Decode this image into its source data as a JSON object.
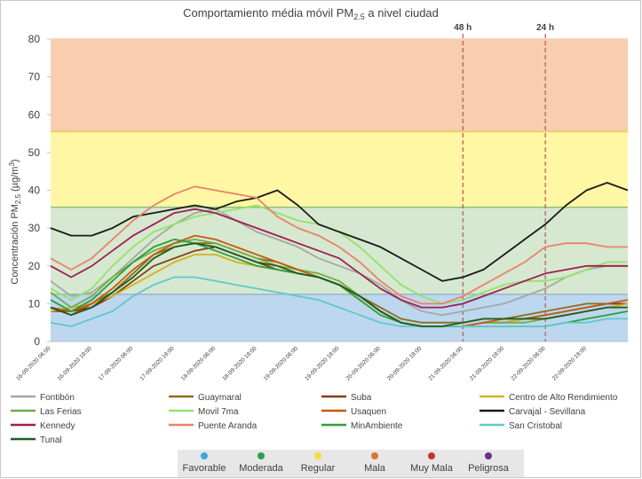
{
  "chart_data": {
    "type": "line",
    "title": [
      "Comportamiento média móvil PM",
      "2.5",
      " a nivel ciudad"
    ],
    "y_label": [
      "Concentración PM",
      "2.5",
      " (µg/m",
      "3",
      ")"
    ],
    "ylim": [
      0,
      80
    ],
    "yticks": [
      0,
      10,
      20,
      30,
      40,
      50,
      60,
      70,
      80
    ],
    "bands": [
      {
        "from": 0,
        "to": 12.5,
        "color": "#bdd7ee",
        "edge": "#9db4cc"
      },
      {
        "from": 12.5,
        "to": 35.5,
        "color": "#d6e8d0",
        "edge": "#8fbf7f"
      },
      {
        "from": 35.5,
        "to": 55.5,
        "color": "#fff7a3",
        "edge": "#e6c95a"
      },
      {
        "from": 55.5,
        "to": 80,
        "color": "#f8cdb0",
        "edge": "#f8cdb0"
      }
    ],
    "markers": [
      {
        "label": "48 h",
        "x": "21-09-2020 06:00",
        "color": "#b05a5a"
      },
      {
        "label": "24 h",
        "x": "22-09-2020 06:00",
        "color": "#b05a5a"
      }
    ],
    "categories": [
      "16-09-2020 06:00",
      null,
      "16-09-2020 18:00",
      null,
      "17-09-2020 06:00",
      null,
      "17-09-2020 18:00",
      null,
      "18-09-2020 06:00",
      null,
      "18-09-2020 18:00",
      null,
      "19-09-2020 06:00",
      null,
      "19-09-2020 18:00",
      null,
      "20-09-2020 06:00",
      null,
      "20-09-2020 18:00",
      null,
      "21-09-2020 06:00",
      null,
      "21-09-2020 18:00",
      null,
      "22-09-2020 06:00",
      null,
      "22-09-2020 18:00",
      null,
      null
    ],
    "series": [
      {
        "name": "Fontibón",
        "color": "#a6a6a6",
        "values": [
          16,
          12,
          13,
          17,
          22,
          27,
          31,
          34,
          35,
          32,
          29,
          27,
          25,
          22,
          20,
          18,
          15,
          11,
          8,
          7,
          8,
          9,
          10,
          12,
          14,
          17,
          19,
          20,
          20
        ]
      },
      {
        "name": "Guaymaral",
        "color": "#8c6d1f",
        "values": [
          9,
          7,
          10,
          13,
          18,
          23,
          25,
          26,
          26,
          24,
          22,
          21,
          19,
          17,
          15,
          12,
          9,
          6,
          5,
          5,
          5,
          6,
          6,
          7,
          8,
          9,
          10,
          10,
          10
        ]
      },
      {
        "name": "Suba",
        "color": "#843c0c",
        "values": [
          8,
          8,
          9,
          12,
          16,
          20,
          22,
          24,
          25,
          23,
          21,
          19,
          18,
          17,
          15,
          12,
          8,
          5,
          4,
          4,
          4,
          5,
          5,
          6,
          7,
          8,
          9,
          10,
          10
        ]
      },
      {
        "name": "Centro de Alto Rendimiento",
        "color": "#d4b31a",
        "values": [
          8,
          9,
          10,
          12,
          15,
          18,
          21,
          23,
          23,
          21,
          20,
          19,
          18,
          17,
          15,
          11,
          7,
          5,
          4,
          4,
          4,
          5,
          5,
          6,
          6,
          7,
          8,
          9,
          10
        ]
      },
      {
        "name": "Las Ferias",
        "color": "#70ad47",
        "values": [
          13,
          9,
          12,
          17,
          21,
          24,
          26,
          27,
          26,
          24,
          22,
          20,
          19,
          18,
          16,
          12,
          8,
          5,
          4,
          4,
          4,
          5,
          5,
          5,
          6,
          7,
          8,
          9,
          9
        ]
      },
      {
        "name": "Movil 7ma",
        "color": "#92e36a",
        "values": [
          14,
          11,
          14,
          20,
          25,
          29,
          31,
          33,
          34,
          35,
          36,
          34,
          32,
          31,
          29,
          25,
          20,
          15,
          12,
          10,
          11,
          13,
          15,
          16,
          16,
          17,
          19,
          21,
          21
        ]
      },
      {
        "name": "Usaquen",
        "color": "#c55a11",
        "values": [
          9,
          8,
          10,
          14,
          19,
          23,
          26,
          28,
          27,
          25,
          23,
          21,
          19,
          17,
          15,
          12,
          8,
          5,
          4,
          4,
          4,
          5,
          6,
          6,
          7,
          8,
          9,
          10,
          11
        ]
      },
      {
        "name": "Carvajal - Sevillana",
        "color": "#1a1a1a",
        "values": [
          30,
          28,
          28,
          30,
          33,
          34,
          35,
          36,
          35,
          37,
          38,
          40,
          36,
          31,
          29,
          27,
          25,
          22,
          19,
          16,
          17,
          19,
          23,
          27,
          31,
          36,
          40,
          42,
          40
        ]
      },
      {
        "name": "Kennedy",
        "color": "#9e1f4f",
        "values": [
          20,
          17,
          20,
          24,
          28,
          31,
          34,
          35,
          34,
          32,
          30,
          28,
          26,
          24,
          22,
          18,
          14,
          11,
          9,
          9,
          10,
          12,
          14,
          16,
          18,
          19,
          20,
          20,
          20
        ]
      },
      {
        "name": "Puente Aranda",
        "color": "#e8836a",
        "values": [
          22,
          19,
          22,
          27,
          32,
          36,
          39,
          41,
          40,
          39,
          38,
          33,
          30,
          28,
          25,
          21,
          16,
          12,
          10,
          10,
          12,
          15,
          18,
          21,
          25,
          26,
          26,
          25,
          25
        ]
      },
      {
        "name": "MinAmbiente",
        "color": "#2e9e3a",
        "values": [
          11,
          8,
          11,
          16,
          21,
          25,
          27,
          26,
          24,
          22,
          20,
          19,
          18,
          17,
          15,
          11,
          7,
          5,
          4,
          4,
          4,
          4,
          4,
          4,
          4,
          5,
          6,
          7,
          8
        ]
      },
      {
        "name": "San Cristobal",
        "color": "#5fc9c9",
        "values": [
          5,
          4,
          6,
          8,
          12,
          15,
          17,
          17,
          16,
          15,
          14,
          13,
          12,
          11,
          9,
          7,
          5,
          4,
          4,
          4,
          4,
          4,
          4,
          4,
          4,
          5,
          5,
          6,
          6
        ]
      },
      {
        "name": "Tunal",
        "color": "#1e5c1e",
        "values": [
          9,
          7,
          9,
          13,
          17,
          22,
          25,
          26,
          25,
          23,
          21,
          20,
          18,
          17,
          15,
          12,
          8,
          5,
          4,
          4,
          5,
          6,
          6,
          6,
          6,
          7,
          8,
          9,
          9
        ]
      }
    ],
    "quality_levels": [
      {
        "name": "Favorable",
        "color": "#3fa7dc"
      },
      {
        "name": "Moderada",
        "color": "#2e9e48"
      },
      {
        "name": "Regular",
        "color": "#f2dc3c"
      },
      {
        "name": "Mala",
        "color": "#d9772a"
      },
      {
        "name": "Muy Mala",
        "color": "#c8352e"
      },
      {
        "name": "Peligrosa",
        "color": "#6a2f8f"
      }
    ]
  }
}
